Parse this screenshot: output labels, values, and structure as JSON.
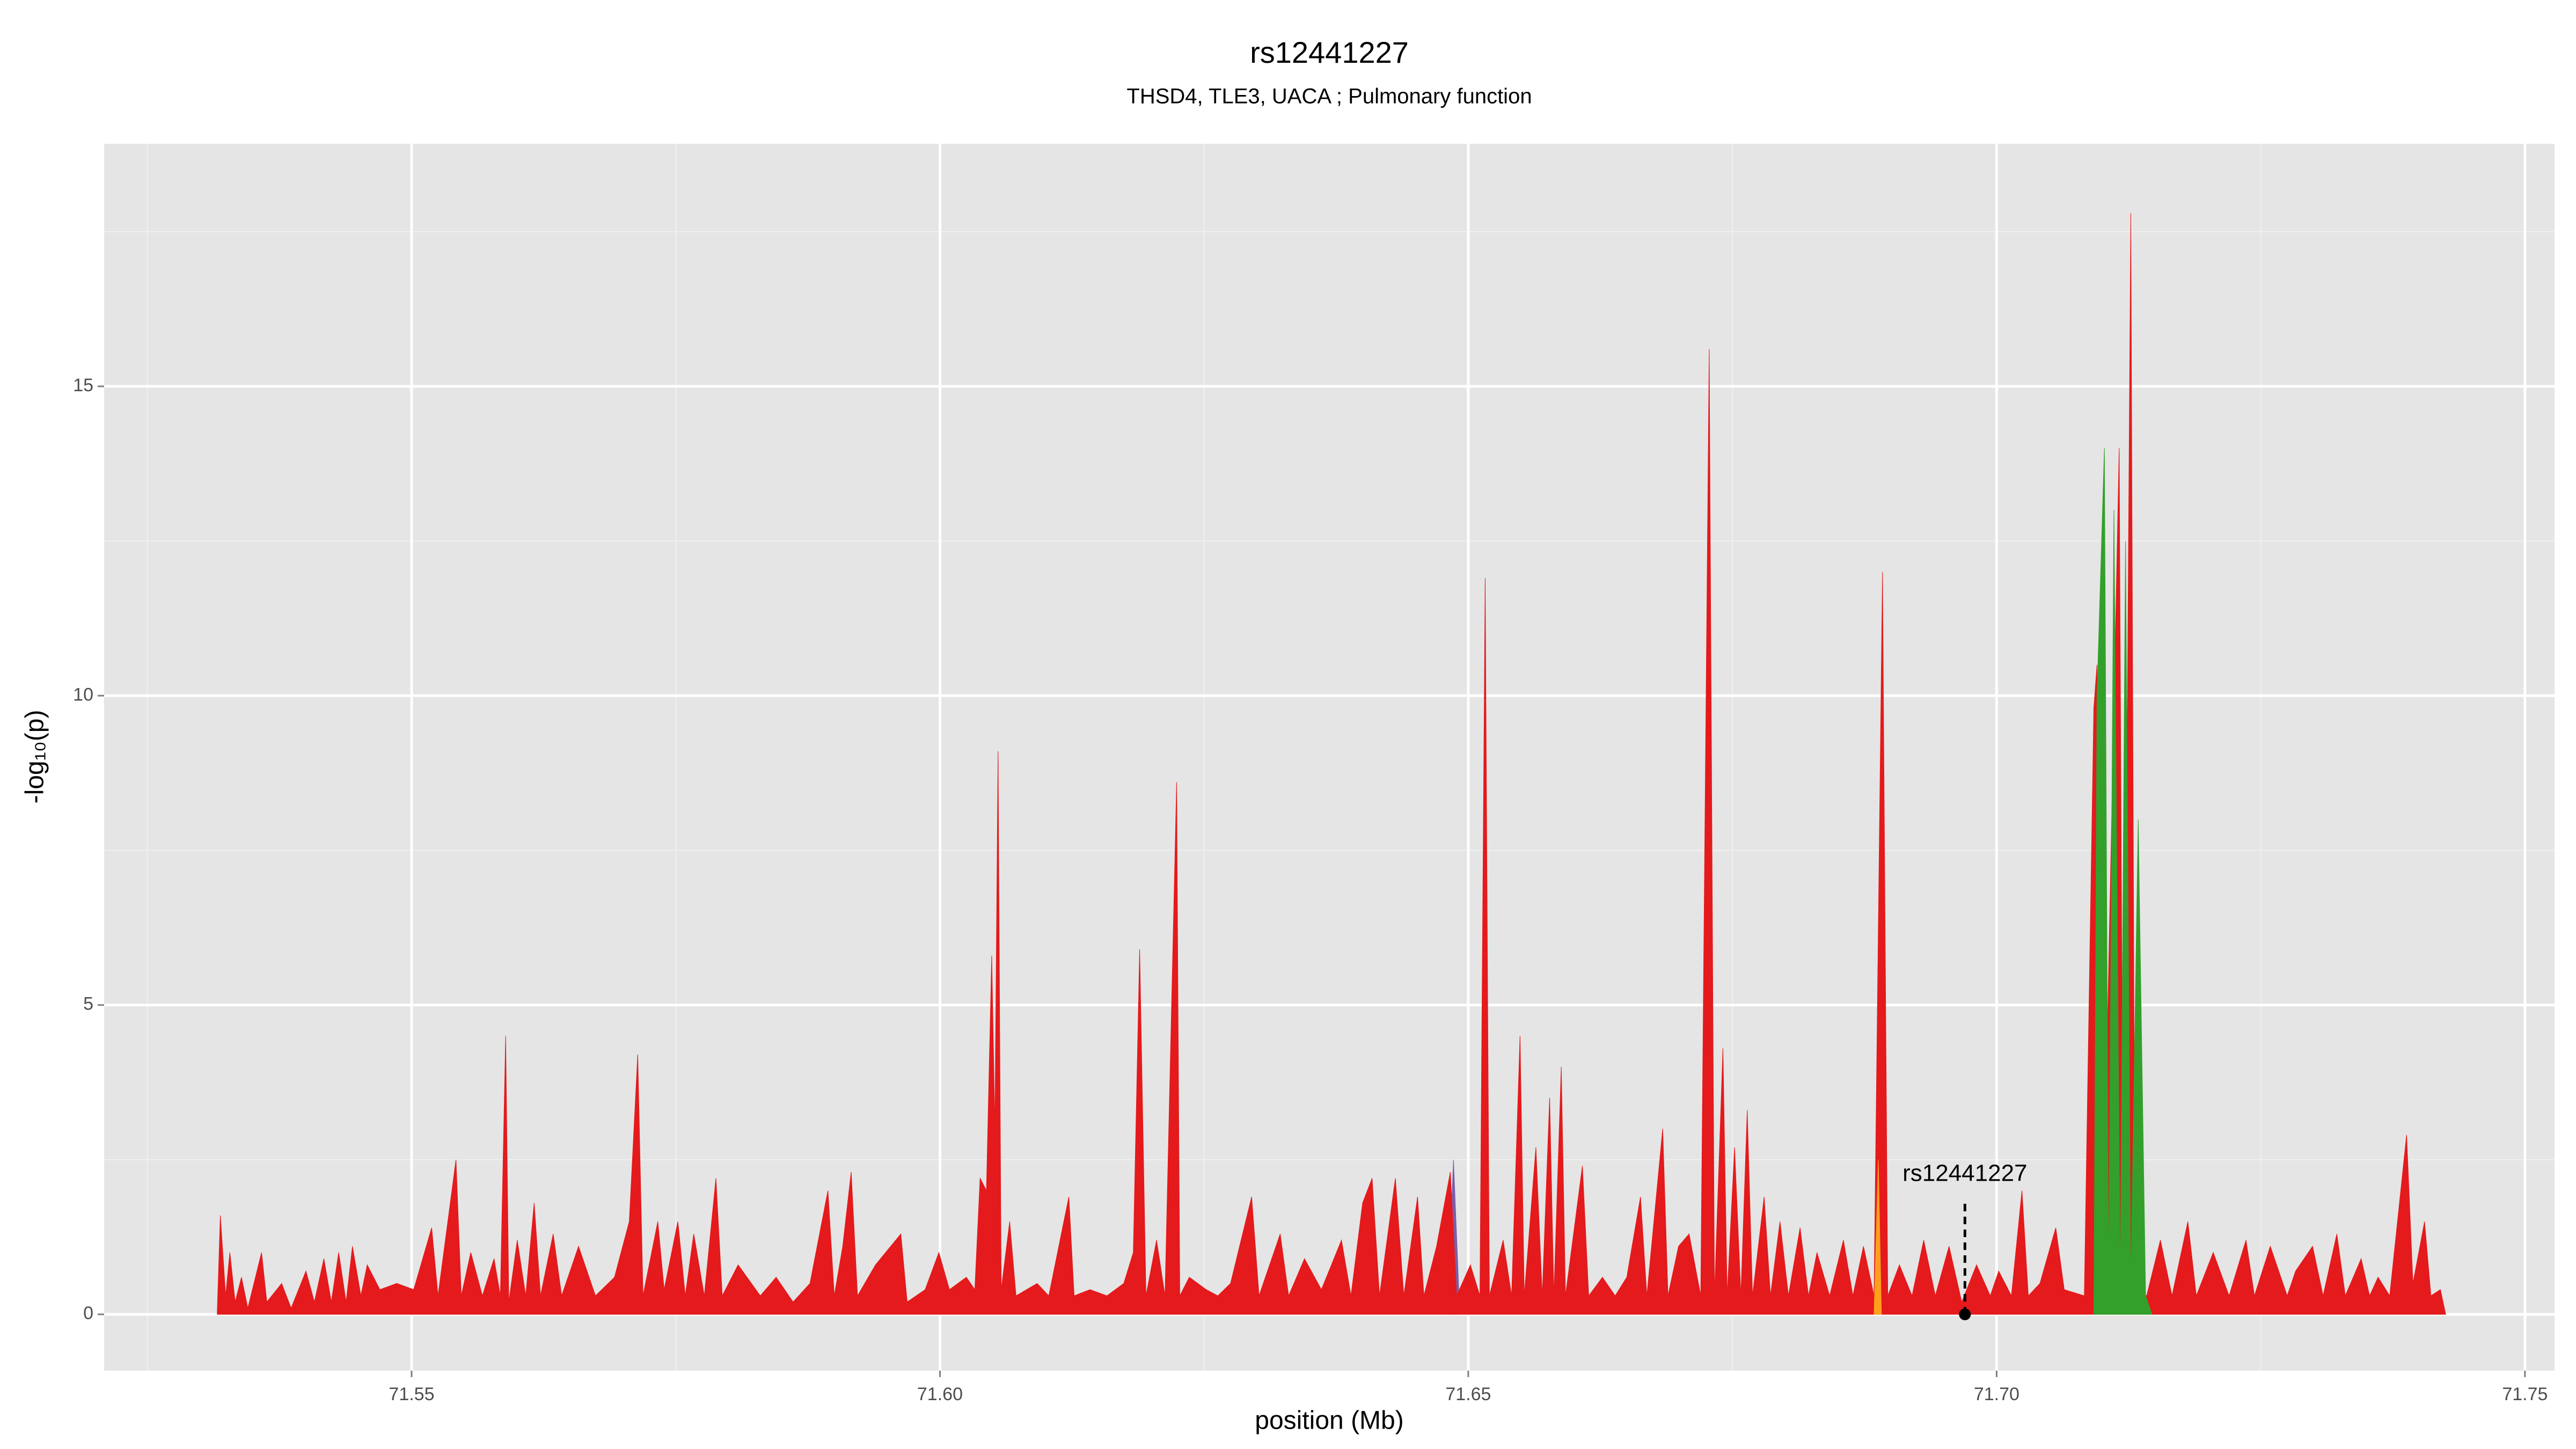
{
  "chart_data": {
    "type": "area",
    "title": "rs12441227",
    "subtitle": "THSD4, TLE3, UACA ; Pulmonary function",
    "xlabel": "position (Mb)",
    "ylabel": "-log₁₀(p)",
    "xlim": [
      71.5209,
      71.7528
    ],
    "ylim": [
      -0.91,
      18.92
    ],
    "xticks": [
      71.55,
      {
        "value": 71.6,
        "label": "71.60"
      },
      71.65,
      {
        "value": 71.7,
        "label": "71.70"
      },
      71.75
    ],
    "yticks": [
      0,
      5,
      10,
      15
    ],
    "grid": true,
    "series": [
      {
        "color": "#7b5ea7",
        "x": [
          71.648,
          71.6486,
          71.6492
        ],
        "values": [
          0,
          2.5,
          0
        ]
      },
      {
        "color": "#e41a1c",
        "x": [
          71.5316,
          71.5319,
          71.5324,
          71.5328,
          71.5333,
          71.5339,
          71.5345,
          71.5358,
          71.5363,
          71.5377,
          71.5386,
          71.54,
          71.5408,
          71.5417,
          71.5424,
          71.5431,
          71.5438,
          71.5444,
          71.5452,
          71.5458,
          71.547,
          71.5486,
          71.5502,
          71.5519,
          71.5525,
          71.5542,
          71.5547,
          71.5556,
          71.5567,
          71.5578,
          71.5584,
          71.5589,
          71.5592,
          71.56,
          71.5608,
          71.5616,
          71.5622,
          71.5634,
          71.5642,
          71.5658,
          71.5674,
          71.5692,
          71.5706,
          71.5714,
          71.5719,
          71.5733,
          71.5739,
          71.5752,
          71.5759,
          71.5767,
          71.5777,
          71.5788,
          71.5794,
          71.5809,
          71.583,
          71.5845,
          71.5861,
          71.5877,
          71.5894,
          71.59,
          71.5908,
          71.5916,
          71.5922,
          71.5939,
          71.5963,
          71.5969,
          71.5986,
          71.5999,
          71.6009,
          71.6025,
          71.6033,
          71.6038,
          71.6044,
          71.6049,
          71.6052,
          71.6055,
          71.6058,
          71.6066,
          71.6072,
          71.6092,
          71.6103,
          71.6122,
          71.6127,
          71.6142,
          71.6158,
          71.6174,
          71.6183,
          71.6189,
          71.6195,
          71.6205,
          71.6213,
          71.6224,
          71.6227,
          71.6236,
          71.6252,
          71.6263,
          71.6275,
          71.6295,
          71.6302,
          71.6322,
          71.633,
          71.6345,
          71.6361,
          71.638,
          71.6389,
          71.64,
          71.6409,
          71.6416,
          71.6431,
          71.6439,
          71.6452,
          71.6458,
          71.647,
          71.6483,
          71.6489,
          71.6502,
          71.6511,
          71.6516,
          71.652,
          71.6533,
          71.6541,
          71.6549,
          71.6553,
          71.6564,
          71.657,
          71.6577,
          71.6581,
          71.6588,
          71.6592,
          71.6608,
          71.6614,
          71.6627,
          71.6639,
          71.665,
          71.6663,
          71.6669,
          71.6684,
          71.6689,
          71.6699,
          71.6709,
          71.672,
          71.6728,
          71.6733,
          71.6741,
          71.6745,
          71.6752,
          71.6758,
          71.6764,
          71.6769,
          71.678,
          71.6786,
          71.6795,
          71.6803,
          71.6814,
          71.6822,
          71.683,
          71.6842,
          71.6855,
          71.6864,
          71.6874,
          71.6884,
          71.6892,
          71.6897,
          71.6908,
          71.692,
          71.6931,
          71.6942,
          71.6955,
          71.6967,
          71.6981,
          71.6994,
          71.7002,
          71.7014,
          71.7024,
          71.703,
          71.7041,
          71.7056,
          71.7064,
          71.7083,
          71.7092,
          71.7095,
          71.71,
          71.7116,
          71.712,
          71.7127,
          71.7131,
          71.7142,
          71.7155,
          71.7166,
          71.7181,
          71.7189,
          71.7205,
          71.722,
          71.7236,
          71.7244,
          71.7259,
          71.7275,
          71.7283,
          71.7299,
          71.7309,
          71.7322,
          71.733,
          71.7345,
          71.7353,
          71.7361,
          71.7372,
          71.7388,
          71.7394,
          71.7405,
          71.7411,
          71.742,
          71.7425
        ],
        "values": [
          0,
          1.6,
          0.3,
          1.0,
          0.2,
          0.6,
          0.1,
          1.0,
          0.2,
          0.5,
          0.1,
          0.7,
          0.2,
          0.9,
          0.2,
          1.0,
          0.2,
          1.1,
          0.3,
          0.8,
          0.4,
          0.5,
          0.4,
          1.4,
          0.3,
          2.5,
          0.3,
          1.0,
          0.3,
          0.9,
          0.3,
          4.5,
          0.2,
          1.2,
          0.3,
          1.8,
          0.3,
          1.3,
          0.3,
          1.1,
          0.3,
          0.6,
          1.5,
          4.2,
          0.3,
          1.5,
          0.4,
          1.5,
          0.3,
          1.3,
          0.3,
          2.2,
          0.3,
          0.8,
          0.3,
          0.6,
          0.2,
          0.5,
          2.0,
          0.3,
          1.1,
          2.3,
          0.3,
          0.8,
          1.3,
          0.2,
          0.4,
          1.0,
          0.4,
          0.6,
          0.4,
          2.2,
          2.0,
          5.8,
          3.0,
          9.1,
          0.4,
          1.5,
          0.3,
          0.5,
          0.3,
          1.9,
          0.3,
          0.4,
          0.3,
          0.5,
          1.0,
          5.9,
          0.3,
          1.2,
          0.3,
          8.6,
          0.3,
          0.6,
          0.4,
          0.3,
          0.5,
          1.9,
          0.3,
          1.3,
          0.3,
          0.9,
          0.4,
          1.2,
          0.3,
          1.8,
          2.2,
          0.3,
          2.2,
          0.3,
          1.9,
          0.3,
          1.1,
          2.3,
          0.3,
          0.8,
          0.3,
          11.9,
          0.3,
          1.2,
          0.3,
          4.5,
          0.3,
          2.7,
          0.3,
          3.5,
          0.3,
          4.0,
          0.3,
          2.4,
          0.3,
          0.6,
          0.3,
          0.6,
          1.9,
          0.3,
          3.0,
          0.3,
          1.1,
          1.3,
          0.3,
          15.6,
          0.3,
          4.3,
          0.3,
          2.7,
          0.3,
          3.3,
          0.3,
          1.9,
          0.3,
          1.5,
          0.3,
          1.4,
          0.3,
          1.0,
          0.3,
          1.2,
          0.3,
          1.1,
          0.3,
          12.0,
          0.3,
          0.8,
          0.3,
          1.2,
          0.3,
          1.1,
          0.2,
          0.8,
          0.3,
          0.7,
          0.3,
          2.0,
          0.3,
          0.5,
          1.4,
          0.4,
          0.3,
          9.8,
          10.5,
          0.5,
          14.0,
          0.5,
          17.8,
          0.4,
          0.3,
          1.2,
          0.3,
          1.5,
          0.3,
          1.0,
          0.3,
          1.2,
          0.3,
          1.1,
          0.3,
          0.7,
          1.1,
          0.3,
          1.3,
          0.3,
          0.9,
          0.3,
          0.6,
          0.3,
          2.9,
          0.5,
          1.5,
          0.3,
          0.4,
          0
        ]
      },
      {
        "color": "#ff9f1c",
        "x": [
          71.6884,
          71.6888,
          71.6891
        ],
        "values": [
          0,
          2.5,
          0
        ]
      },
      {
        "color": "#33a02c",
        "x": [
          71.7092,
          71.7095,
          71.7102,
          71.7106,
          71.7111,
          71.7117,
          71.7122,
          71.7127,
          71.7134,
          71.7141,
          71.7147
        ],
        "values": [
          0,
          10.0,
          14.0,
          0.5,
          13.0,
          0.5,
          12.5,
          0.5,
          8.0,
          0.3,
          0
        ]
      }
    ],
    "annotation": {
      "label": "rs12441227",
      "x": 71.697,
      "y": 0
    }
  }
}
